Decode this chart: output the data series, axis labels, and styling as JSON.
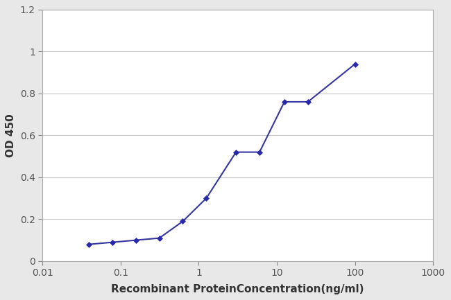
{
  "x": [
    0.039,
    0.078,
    0.156,
    0.313,
    0.625,
    1.25,
    3.0,
    6.0,
    12.5,
    25.0,
    100.0
  ],
  "y": [
    0.08,
    0.09,
    0.1,
    0.11,
    0.19,
    0.3,
    0.52,
    0.52,
    0.76,
    0.76,
    0.94
  ],
  "xlim": [
    0.02,
    1000
  ],
  "ylim": [
    0,
    1.2
  ],
  "yticks": [
    0,
    0.2,
    0.4,
    0.6,
    0.8,
    1.0,
    1.2
  ],
  "xticks_major": [
    0.01,
    0.1,
    1,
    10,
    100,
    1000
  ],
  "xtick_labels": [
    "0.01",
    "0.1",
    "1",
    "10",
    "100",
    "1000"
  ],
  "xlabel": "Recombinant ProteinConcentration(ng/ml)",
  "ylabel": "OD 450",
  "line_color": "#3535a0",
  "marker_color": "#2828aa",
  "figure_bg": "#e8e8e8",
  "plot_bg_color": "#ffffff",
  "grid_color": "#c8c8c8",
  "xlabel_fontsize": 11,
  "ylabel_fontsize": 11,
  "tick_fontsize": 10,
  "title": ""
}
